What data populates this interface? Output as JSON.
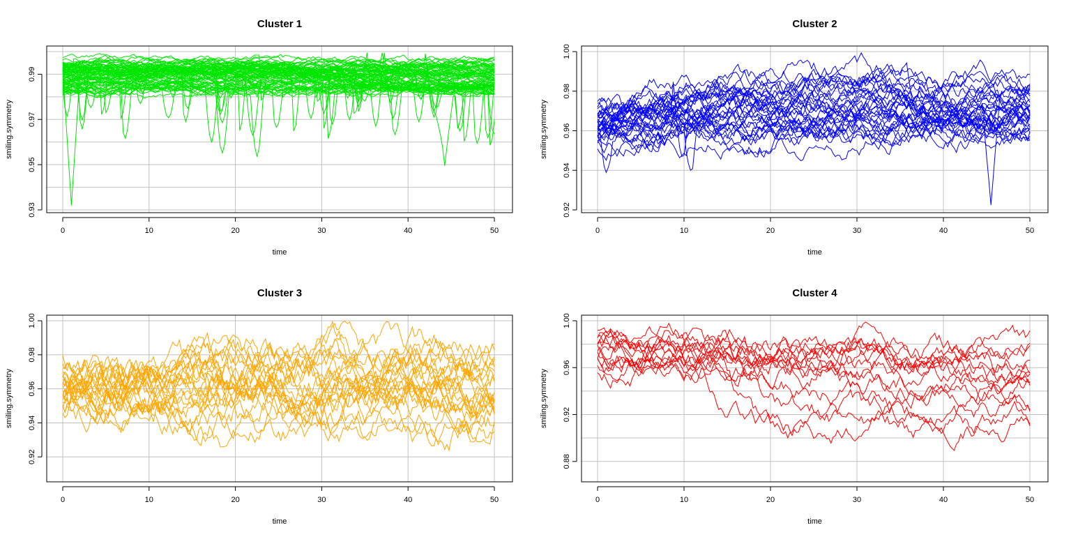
{
  "chart_data": [
    {
      "type": "line",
      "title": "Cluster 1",
      "xlabel": "time",
      "ylabel": "smiling.symmetry",
      "xlim": [
        0,
        50
      ],
      "ylim": [
        0.93,
        1.0
      ],
      "xticks": [
        "0",
        "10",
        "20",
        "30",
        "40",
        "50"
      ],
      "yticks": [
        "0.93",
        "0.95",
        "0.97",
        "0.99"
      ],
      "ytick_values": [
        0.93,
        0.95,
        0.97,
        0.99
      ],
      "grid_y": [
        0.93,
        0.94,
        0.95,
        0.96,
        0.97,
        0.98,
        0.99,
        1.0
      ],
      "grid": true,
      "color": "#00e600",
      "series_count": 80,
      "series_shape": {
        "mean_range": [
          0.982,
          0.996
        ],
        "volatility": 0.005,
        "ceiling": 0.9995,
        "floor": 0.93,
        "rough": 0.35,
        "dip_probability": 0.08,
        "dip_depth": 0.018
      },
      "annotated_points": [
        {
          "label": "min",
          "x": 1.1,
          "y": 0.932
        },
        {
          "label": "dip",
          "x": 44.2,
          "y": 0.9495
        }
      ]
    },
    {
      "type": "line",
      "title": "Cluster 2",
      "xlabel": "time",
      "ylabel": "smiling.symmetry",
      "xlim": [
        0,
        50
      ],
      "ylim": [
        0.92,
        1.0
      ],
      "xticks": [
        "0",
        "10",
        "20",
        "30",
        "40",
        "50"
      ],
      "yticks": [
        "0.92",
        "0.94",
        "0.96",
        "0.98",
        "1.00"
      ],
      "ytick_values": [
        0.92,
        0.94,
        0.96,
        0.98,
        1.0
      ],
      "grid_y": [
        0.92,
        0.94,
        0.96,
        0.98,
        1.0
      ],
      "grid": true,
      "color": "#0000ff",
      "series_count": 32,
      "series_shape": {
        "mean_range": [
          0.955,
          0.99
        ],
        "volatility": 0.012,
        "ceiling": 0.9995,
        "floor": 0.922,
        "rough": 0.5,
        "dip_probability": 0.03,
        "dip_depth": 0.02
      },
      "annotated_points": [
        {
          "label": "min",
          "x": 45.5,
          "y": 0.9225
        }
      ]
    },
    {
      "type": "line",
      "title": "Cluster 3",
      "xlabel": "time",
      "ylabel": "smiling.symmetry",
      "xlim": [
        0,
        50
      ],
      "ylim": [
        0.907,
        1.0
      ],
      "xticks": [
        "0",
        "10",
        "20",
        "30",
        "40",
        "50"
      ],
      "yticks": [
        "0.92",
        "0.94",
        "0.96",
        "0.98",
        "1.00"
      ],
      "ytick_values": [
        0.92,
        0.94,
        0.96,
        0.98,
        1.0
      ],
      "grid_y": [
        0.92,
        0.94,
        0.96,
        0.98,
        1.0
      ],
      "grid": true,
      "color": "#ffa500",
      "series_count": 22,
      "series_shape": {
        "mean_range": [
          0.93,
          0.985
        ],
        "volatility": 0.02,
        "ceiling": 0.9995,
        "floor": 0.909,
        "rough": 0.55,
        "dip_probability": 0.0,
        "dip_depth": 0.0
      },
      "annotated_points": []
    },
    {
      "type": "line",
      "title": "Cluster 4",
      "xlabel": "time",
      "ylabel": "smiling.symmetry",
      "xlim": [
        0,
        50
      ],
      "ylim": [
        0.865,
        1.0
      ],
      "xticks": [
        "0",
        "10",
        "20",
        "30",
        "40",
        "50"
      ],
      "yticks": [
        "0.88",
        "0.92",
        "0.96",
        "1.00"
      ],
      "ytick_values": [
        0.88,
        0.92,
        0.96,
        1.0
      ],
      "grid_y": [
        0.88,
        0.9,
        0.92,
        0.94,
        0.96,
        0.98,
        1.0
      ],
      "grid": true,
      "color": "#ff0000",
      "series_count": 14,
      "series_shape": {
        "mean_range": [
          0.9,
          0.985
        ],
        "volatility": 0.02,
        "ceiling": 0.999,
        "floor": 0.866,
        "rough": 0.55,
        "dip_probability": 0.0,
        "dip_depth": 0.0
      },
      "annotated_points": []
    }
  ]
}
